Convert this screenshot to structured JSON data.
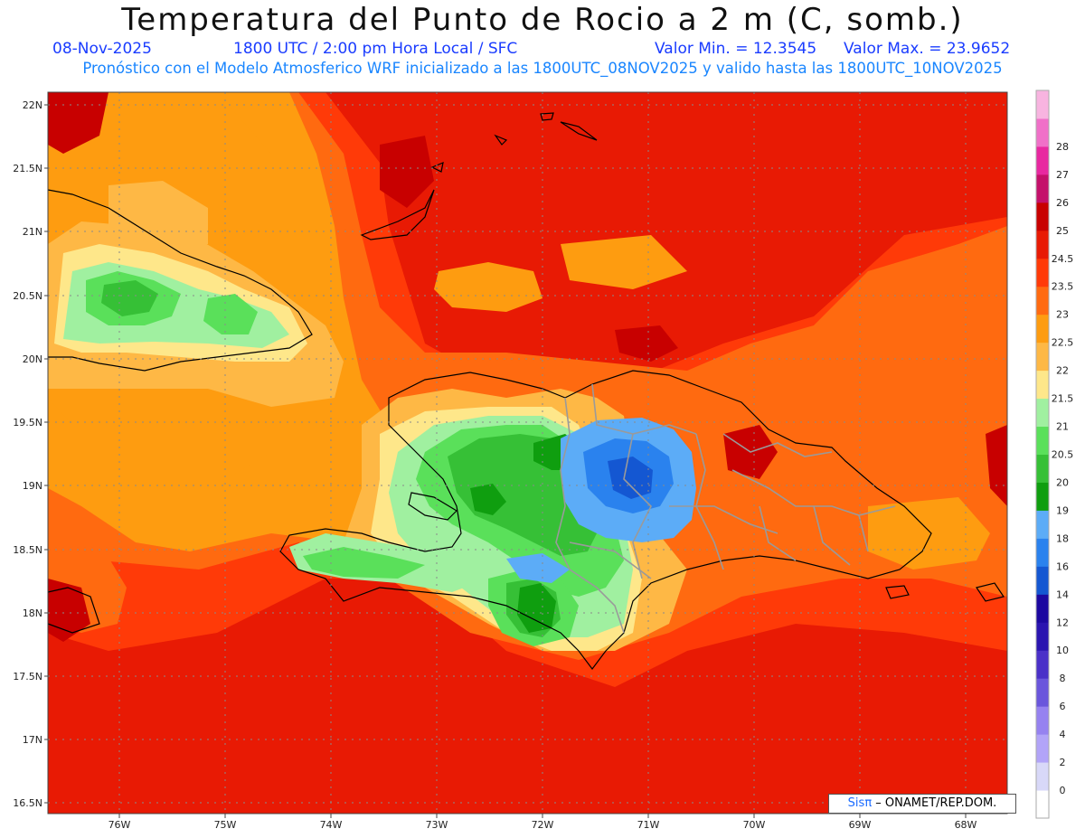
{
  "header": {
    "title": "Temperatura del Punto de Rocio a 2 m (C, somb.)",
    "date": "08-Nov-2025",
    "time_info": "1800 UTC / 2:00 pm Hora Local / SFC",
    "valor_min": "Valor Min. = 12.3545",
    "valor_max": "Valor Max. = 23.9652",
    "forecast_info": "Pronóstico con el Modelo Atmosferico WRF inicializado a las 1800UTC_08NOV2025 y valido hasta las  1800UTC_10NOV2025"
  },
  "map": {
    "lat_labels": [
      "22N",
      "21.5N",
      "21N",
      "20.5N",
      "20N",
      "19.5N",
      "19N",
      "18.5N",
      "18N",
      "17.5N",
      "17N",
      "16.5N"
    ],
    "lon_labels": [
      "76W",
      "75W",
      "74W",
      "73W",
      "72W",
      "71W",
      "70W",
      "69W",
      "68W"
    ],
    "lat_range": [
      16.5,
      22
    ],
    "lon_range": [
      -76.65,
      -67.4
    ]
  },
  "colorbar": {
    "labels": [
      "0",
      "2",
      "4",
      "6",
      "8",
      "10",
      "12",
      "14",
      "16",
      "18",
      "19",
      "20",
      "20.5",
      "21",
      "21.5",
      "22",
      "22.5",
      "23",
      "23.5",
      "24.5",
      "25",
      "26",
      "27",
      "28"
    ],
    "colors": [
      "#ffffff",
      "#d8d8f8",
      "#b2a4f8",
      "#9682f0",
      "#6a56dc",
      "#4a30c8",
      "#2a14b0",
      "#1c08a0",
      "#1457d2",
      "#2a82ee",
      "#5cacf7",
      "#0f9e0f",
      "#36c036",
      "#5ae05a",
      "#a0f0a0",
      "#fee78a",
      "#feb845",
      "#fe9c10",
      "#ff6a10",
      "#ff3a08",
      "#e81a04",
      "#c80000",
      "#c4106a",
      "#e828a0",
      "#f070c8",
      "#f8b4e0"
    ]
  },
  "credit": {
    "sis": "Sis",
    "pi": "π",
    "org": "– ONAMET/REP.DOM."
  }
}
